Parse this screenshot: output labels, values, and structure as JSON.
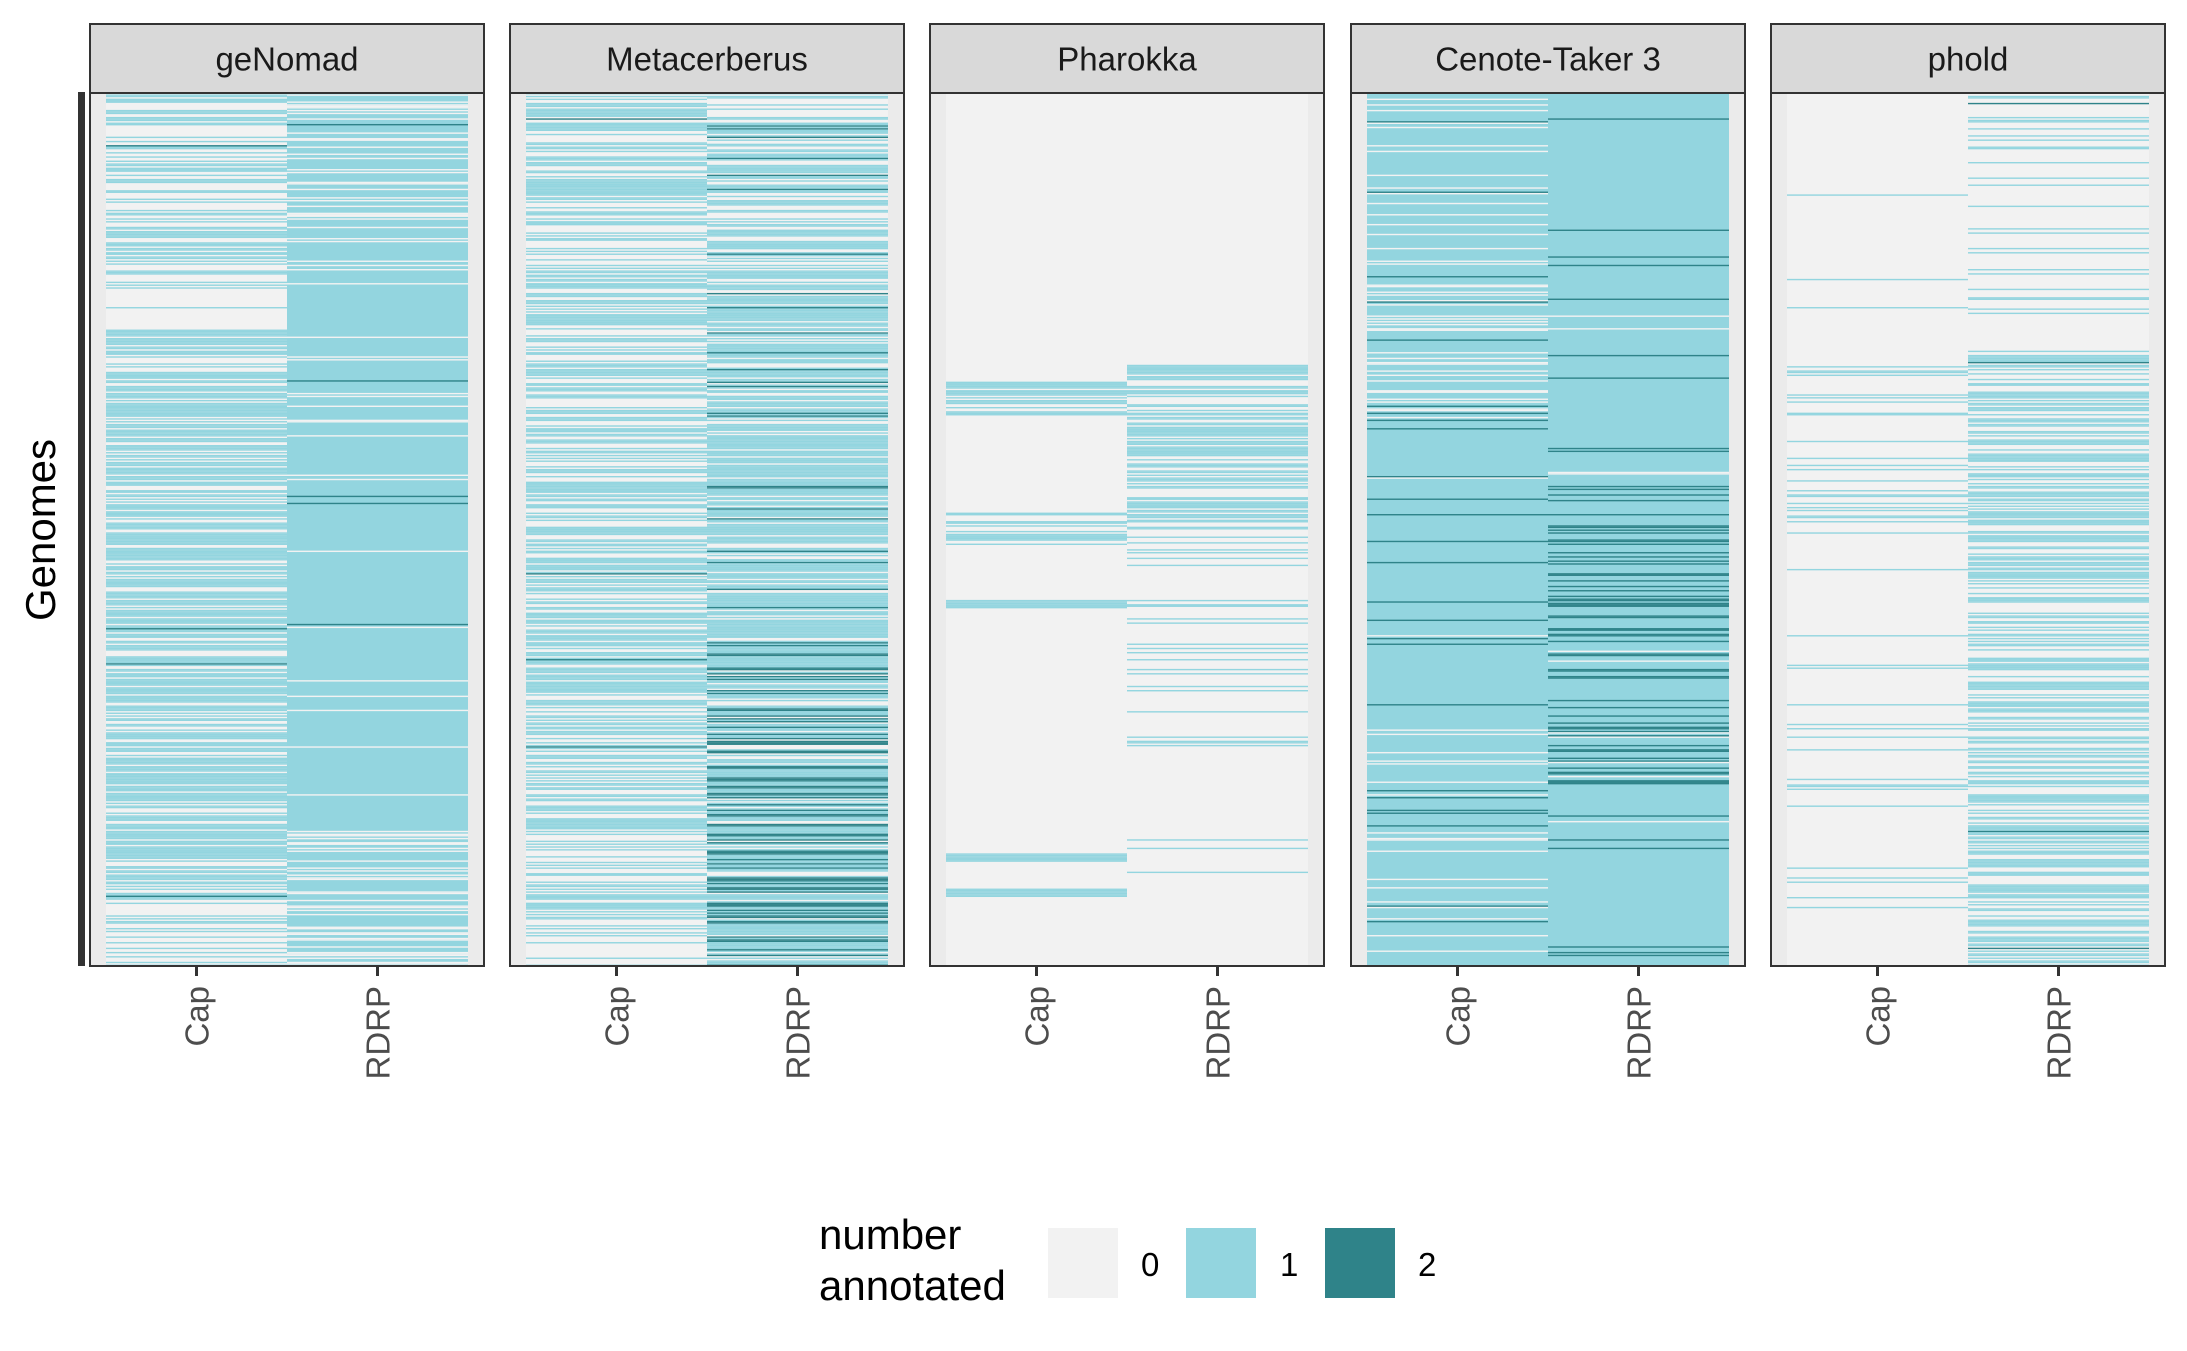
{
  "chart_data": {
    "type": "heatmap",
    "ylabel": "Genomes",
    "categories": [
      "Cap",
      "RDRP"
    ],
    "panels": [
      {
        "name": "geNomad",
        "Cap": {
          "base": 0,
          "bands": [
            {
              "range": [
                0,
                0.22
              ],
              "density": 0.45,
              "value": 1
            },
            {
              "range": [
                0.22,
                0.27
              ],
              "density": 0.02,
              "value": 1
            },
            {
              "range": [
                0.27,
                0.9
              ],
              "density": 0.72,
              "value": 1
            },
            {
              "range": [
                0.9,
                1
              ],
              "density": 0.5,
              "value": 1
            }
          ],
          "dark": 0.01
        },
        "RDRP": {
          "base": 1,
          "bands": [
            {
              "range": [
                0,
                0.2
              ],
              "density": 0.25,
              "value": 0
            },
            {
              "range": [
                0.2,
                0.84
              ],
              "density": 0.04,
              "value": 0
            },
            {
              "range": [
                0.84,
                1
              ],
              "density": 0.35,
              "value": 0
            }
          ],
          "dark": 0.015
        }
      },
      {
        "name": "Metacerberus",
        "Cap": {
          "base": 0,
          "bands": [
            {
              "range": [
                0,
                0.25
              ],
              "density": 0.55,
              "value": 1
            },
            {
              "range": [
                0.25,
                0.85
              ],
              "density": 0.62,
              "value": 1
            },
            {
              "range": [
                0.85,
                1
              ],
              "density": 0.45,
              "value": 1
            }
          ],
          "dark": 0.01
        },
        "RDRP": {
          "base": 0,
          "bands": [
            {
              "range": [
                0,
                0.22
              ],
              "density": 0.5,
              "value": 1
            },
            {
              "range": [
                0.22,
                0.62
              ],
              "density": 0.82,
              "value": 1
            },
            {
              "range": [
                0.62,
                1
              ],
              "density": 0.82,
              "value": 1
            }
          ],
          "dark": 0.1
        },
        "RDRP_dark_extra": {
          "range": [
            0.62,
            1
          ],
          "density": 0.22
        }
      },
      {
        "name": "Pharokka",
        "Cap": {
          "base": 0,
          "bands": [
            {
              "range": [
                0.33,
                0.37
              ],
              "density": 0.7,
              "value": 1
            },
            {
              "range": [
                0.48,
                0.52
              ],
              "density": 0.45,
              "value": 1
            },
            {
              "range": [
                0.58,
                0.59
              ],
              "density": 1,
              "value": 1
            },
            {
              "range": [
                0.87,
                0.88
              ],
              "density": 1,
              "value": 1
            },
            {
              "range": [
                0.91,
                0.92
              ],
              "density": 1,
              "value": 1
            }
          ],
          "dark": 0
        },
        "RDRP": {
          "base": 0,
          "bands": [
            {
              "range": [
                0.31,
                0.5
              ],
              "density": 0.65,
              "value": 1
            },
            {
              "range": [
                0.5,
                0.75
              ],
              "density": 0.14,
              "value": 1
            },
            {
              "range": [
                0.75,
                0.92
              ],
              "density": 0.04,
              "value": 1
            }
          ],
          "dark": 0
        }
      },
      {
        "name": "Cenote-Taker 3",
        "Cap": {
          "base": 1,
          "bands": [
            {
              "range": [
                0,
                0.38
              ],
              "density": 0.2,
              "value": 0
            },
            {
              "range": [
                0.38,
                0.75
              ],
              "density": 0.03,
              "value": 0
            },
            {
              "range": [
                0.75,
                1
              ],
              "density": 0.12,
              "value": 0
            }
          ],
          "dark": 0.035
        },
        "RDRP": {
          "base": 1,
          "bands": [
            {
              "range": [
                0,
                1
              ],
              "density": 0.01,
              "value": 0
            }
          ],
          "dark": 0.04
        },
        "RDRP_dark_extra": {
          "range": [
            0.45,
            0.8
          ],
          "density": 0.22
        }
      },
      {
        "name": "phold",
        "Cap": {
          "base": 0,
          "bands": [
            {
              "range": [
                0,
                0.31
              ],
              "density": 0.03,
              "value": 1
            },
            {
              "range": [
                0.31,
                0.52
              ],
              "density": 0.2,
              "value": 1
            },
            {
              "range": [
                0.52,
                1
              ],
              "density": 0.05,
              "value": 1
            }
          ],
          "dark": 0
        },
        "RDRP": {
          "base": 0,
          "bands": [
            {
              "range": [
                0,
                0.3
              ],
              "density": 0.16,
              "value": 1
            },
            {
              "range": [
                0.3,
                1
              ],
              "density": 0.55,
              "value": 1
            }
          ],
          "dark": 0.01
        }
      }
    ],
    "legend": {
      "title_line1": "number",
      "title_line2": "annotated",
      "labels": [
        "0",
        "1",
        "2"
      ],
      "placement": "bottom"
    },
    "colors": {
      "0": "#f2f2f2",
      "1": "#93d5df",
      "2": "#2f8389",
      "panel_bg": "#ebebeb",
      "strip_bg": "#d9d9d9",
      "border": "#333333"
    },
    "row_count": 620
  }
}
